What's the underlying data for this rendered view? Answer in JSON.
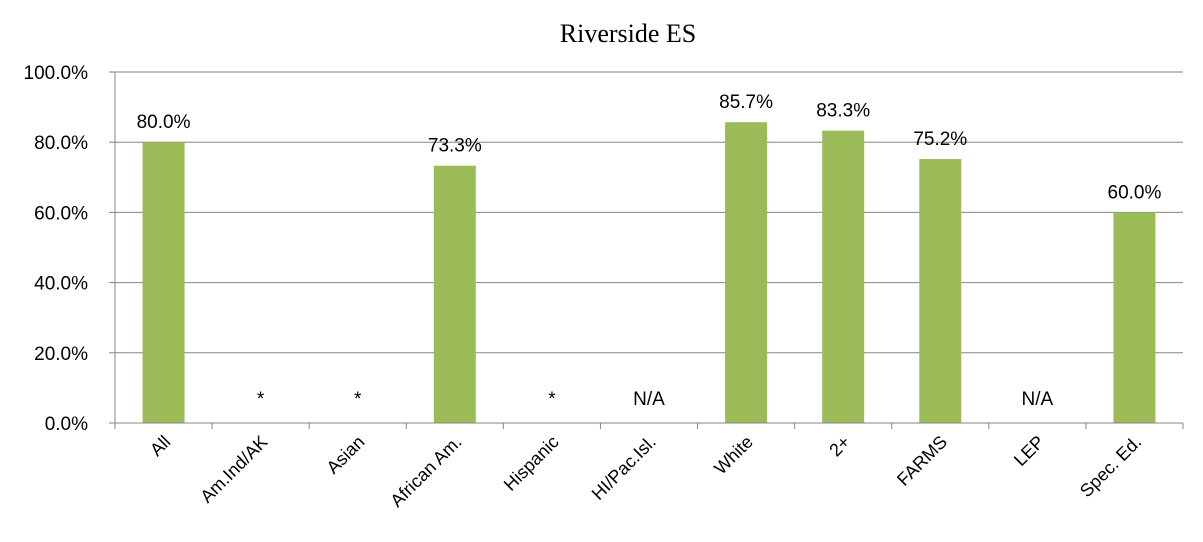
{
  "chart_data": {
    "type": "bar",
    "title": "Riverside ES",
    "xlabel": "",
    "ylabel": "",
    "ylim": [
      0,
      100
    ],
    "grid": true,
    "legend": "none",
    "bar_color": "#9BBB59",
    "y_ticks": [
      "0.0%",
      "20.0%",
      "40.0%",
      "60.0%",
      "80.0%",
      "100.0%"
    ],
    "categories": [
      "All",
      "Am.Ind/AK",
      "Asian",
      "African Am.",
      "Hispanic",
      "HI/Pac.Isl.",
      "White",
      "2+",
      "FARMS",
      "LEP",
      "Spec. Ed."
    ],
    "values": [
      80.0,
      null,
      null,
      73.3,
      null,
      null,
      85.7,
      83.3,
      75.2,
      null,
      60.0
    ],
    "labels": [
      "80.0%",
      "*",
      "*",
      "73.3%",
      "*",
      "N/A",
      "85.7%",
      "83.3%",
      "75.2%",
      "N/A",
      "60.0%"
    ]
  }
}
